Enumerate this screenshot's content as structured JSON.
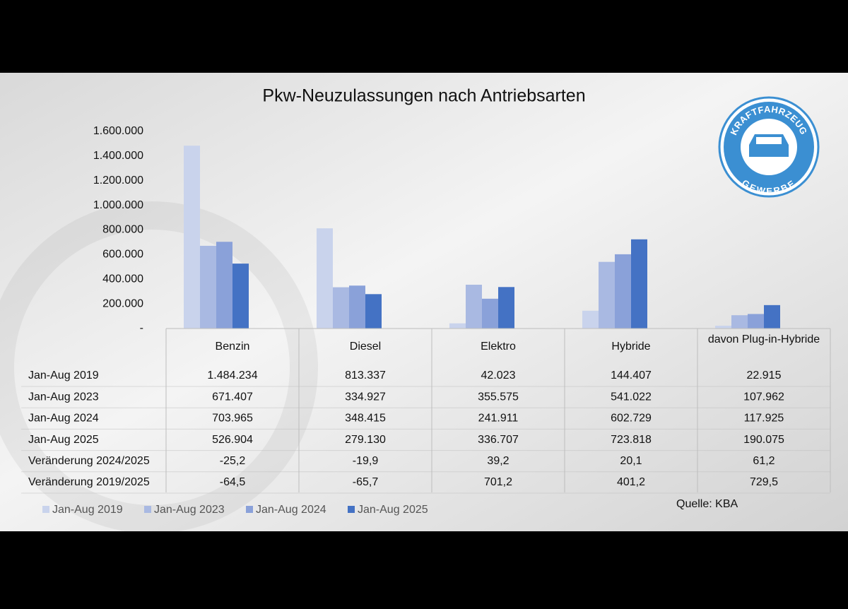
{
  "chart_data": {
    "type": "bar",
    "title": "Pkw-Neuzulassungen nach Antriebsarten",
    "categories": [
      "Benzin",
      "Diesel",
      "Elektro",
      "Hybride",
      "davon Plug-in-Hybride"
    ],
    "series": [
      {
        "name": "Jan-Aug 2019",
        "color": "#c9d3ec",
        "values": [
          1484234,
          813337,
          42023,
          144407,
          22915
        ],
        "value_labels": [
          "1.484.234",
          "813.337",
          "42.023",
          "144.407",
          "22.915"
        ]
      },
      {
        "name": "Jan-Aug 2023",
        "color": "#a9b9e2",
        "values": [
          671407,
          334927,
          355575,
          541022,
          107962
        ],
        "value_labels": [
          "671.407",
          "334.927",
          "355.575",
          "541.022",
          "107.962"
        ]
      },
      {
        "name": "Jan-Aug 2024",
        "color": "#8aa1d9",
        "values": [
          703965,
          348415,
          241911,
          602729,
          117925
        ],
        "value_labels": [
          "703.965",
          "348.415",
          "241.911",
          "602.729",
          "117.925"
        ]
      },
      {
        "name": "Jan-Aug 2025",
        "color": "#4472c4",
        "values": [
          526904,
          279130,
          336707,
          723818,
          190075
        ],
        "value_labels": [
          "526.904",
          "279.130",
          "336.707",
          "723.818",
          "190.075"
        ]
      }
    ],
    "table_rows": [
      {
        "name": "Veränderung 2024/2025",
        "values": [
          -25.2,
          -19.9,
          39.2,
          20.1,
          61.2
        ],
        "value_labels": [
          "-25,2",
          "-19,9",
          "39,2",
          "20,1",
          "61,2"
        ]
      },
      {
        "name": "Veränderung 2019/2025",
        "values": [
          -64.5,
          -65.7,
          701.2,
          401.2,
          729.5
        ],
        "value_labels": [
          "-64,5",
          "-65,7",
          "701,2",
          "401,2",
          "729,5"
        ]
      }
    ],
    "ylim": [
      0,
      1600000
    ],
    "yticks": [
      {
        "value": 0,
        "label": "-"
      },
      {
        "value": 200000,
        "label": "200.000"
      },
      {
        "value": 400000,
        "label": "400.000"
      },
      {
        "value": 600000,
        "label": "600.000"
      },
      {
        "value": 800000,
        "label": "800.000"
      },
      {
        "value": 1000000,
        "label": "1.000.000"
      },
      {
        "value": 1200000,
        "label": "1.200.000"
      },
      {
        "value": 1400000,
        "label": "1.400.000"
      },
      {
        "value": 1600000,
        "label": "1.600.000"
      }
    ],
    "grid": false,
    "source": "Quelle: KBA"
  },
  "logo": {
    "top": "KRAFTFAHRZEUG",
    "bottom": "GEWERBE"
  }
}
